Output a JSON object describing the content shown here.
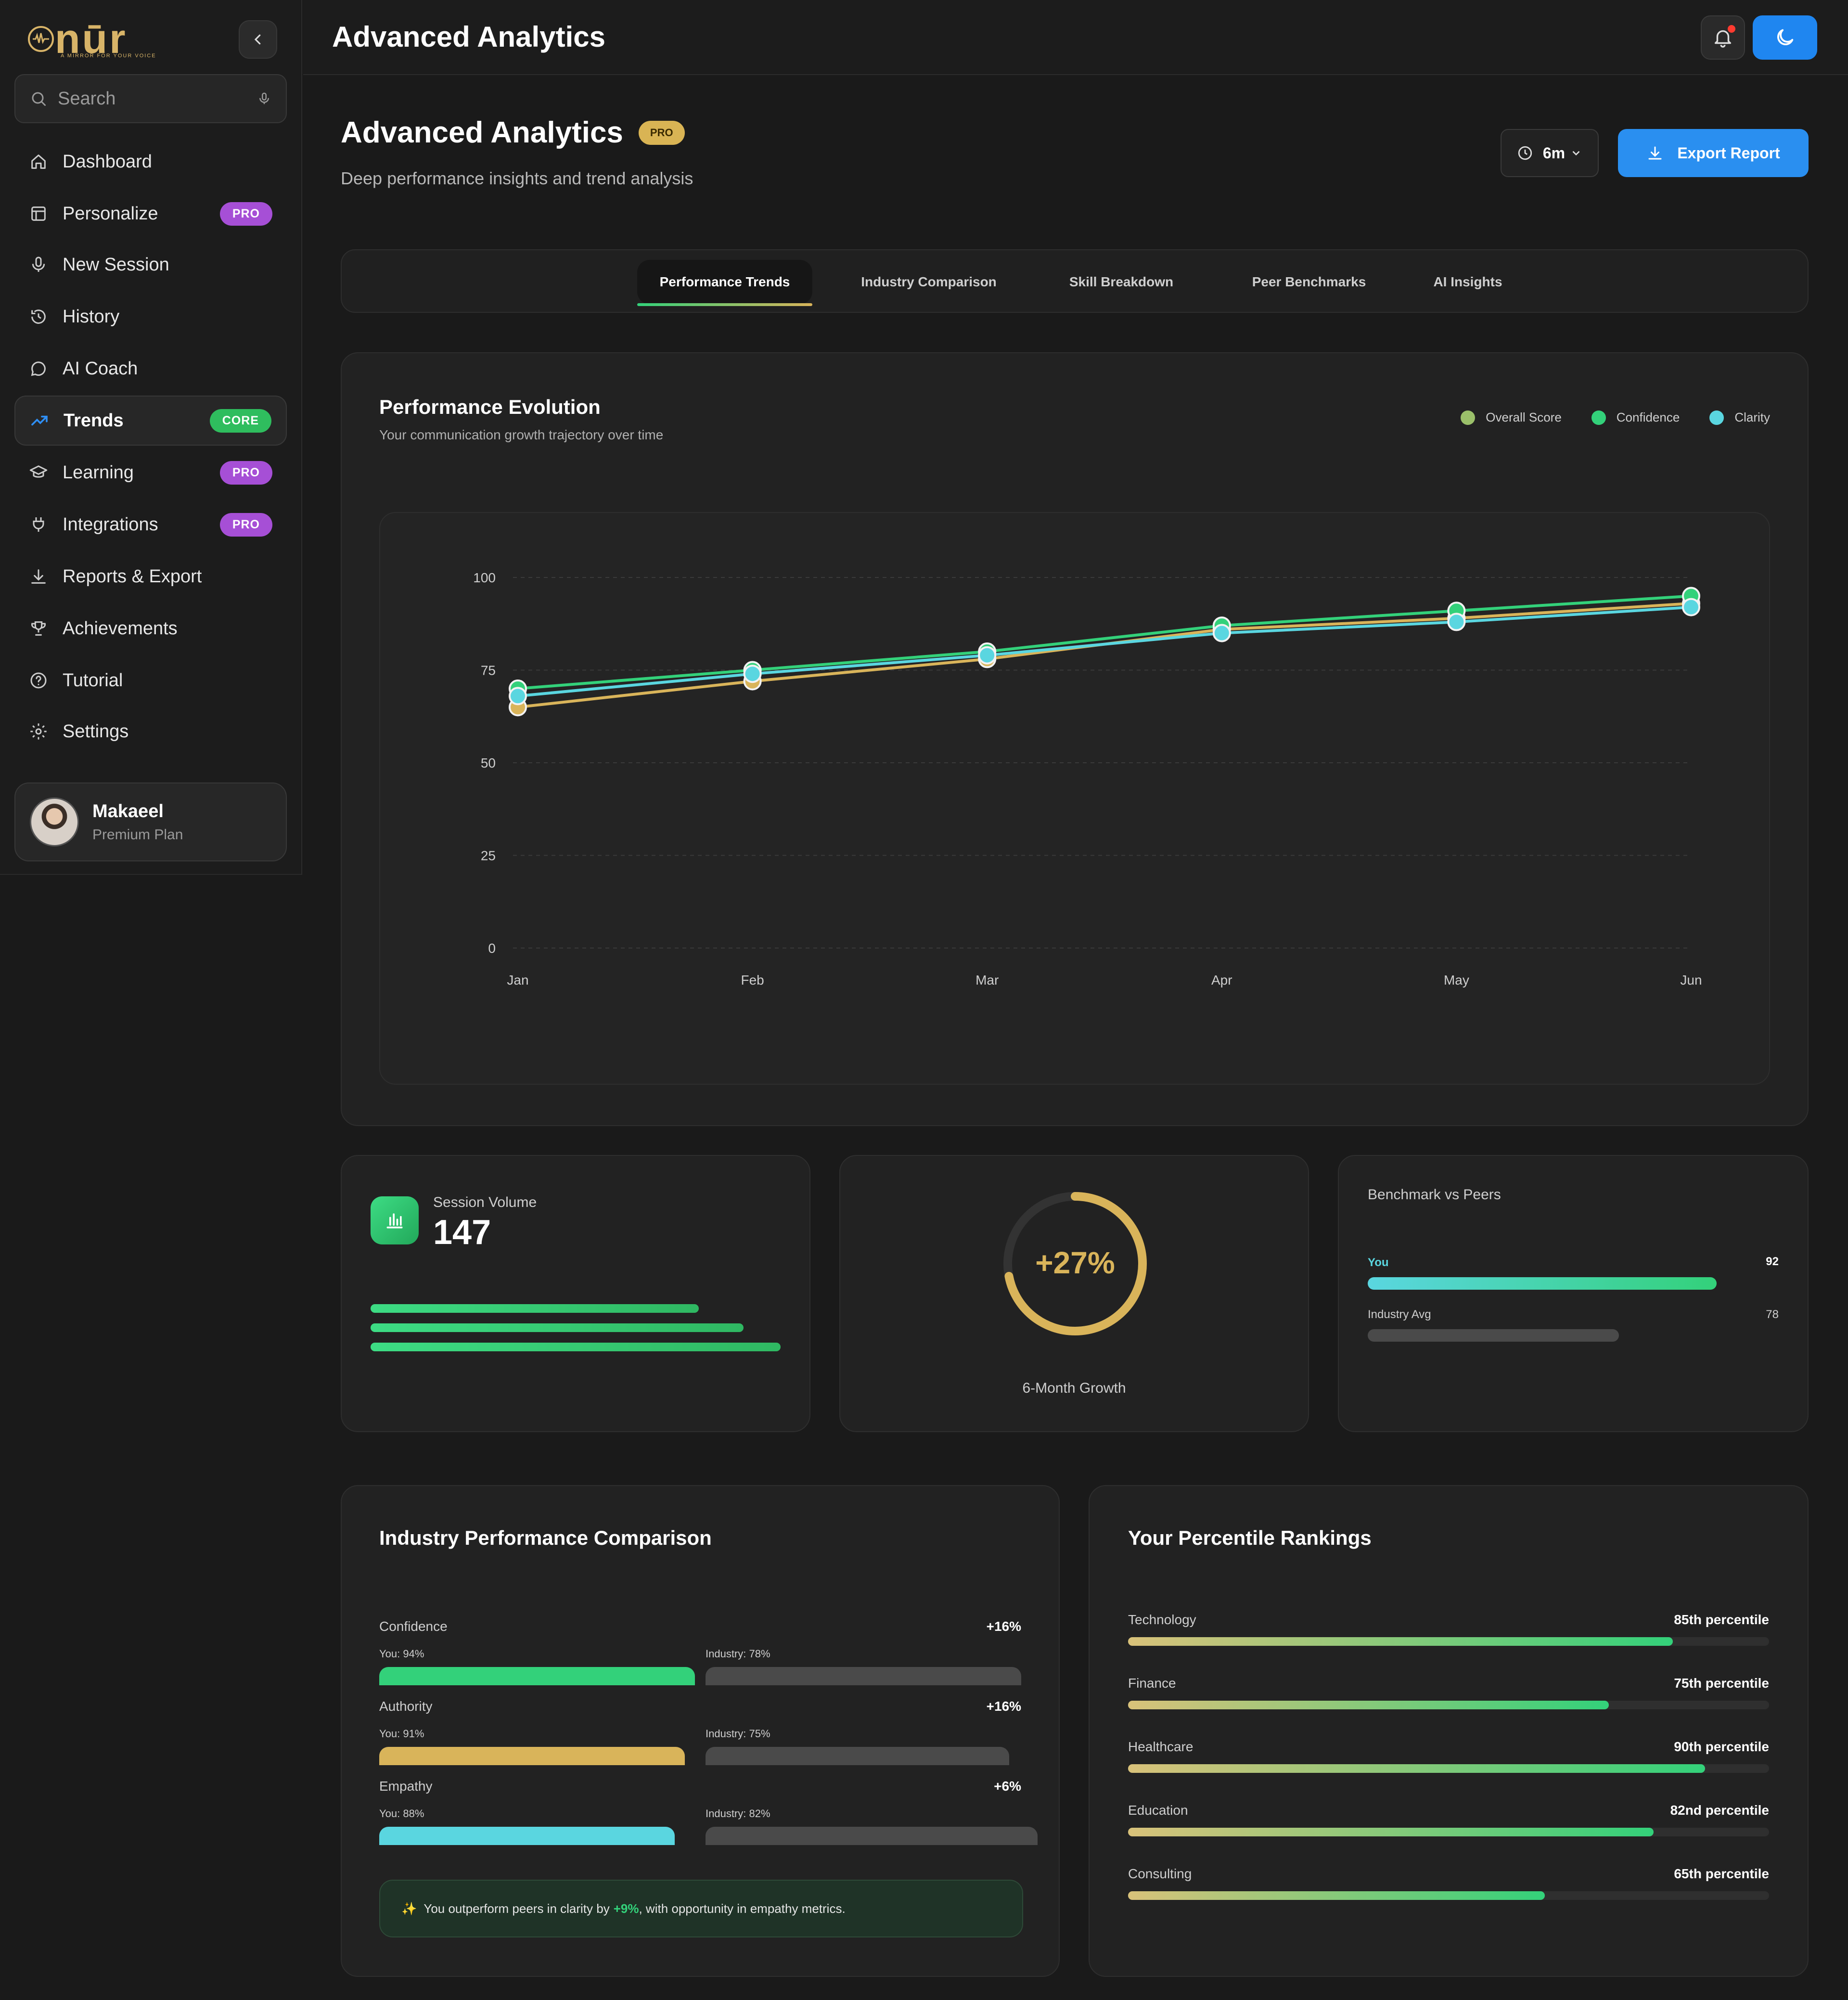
{
  "app": {
    "name": "nūr",
    "tagline": "A MIRROR FOR YOUR VOICE"
  },
  "sidebar": {
    "search_placeholder": "Search",
    "items": [
      {
        "label": "Dashboard",
        "icon": "home-icon"
      },
      {
        "label": "Personalize",
        "icon": "layout-icon",
        "badge": "PRO"
      },
      {
        "label": "New Session",
        "icon": "mic-icon"
      },
      {
        "label": "History",
        "icon": "history-icon"
      },
      {
        "label": "AI Coach",
        "icon": "chat-icon"
      },
      {
        "label": "Trends",
        "icon": "trending-up-icon",
        "badge": "CORE",
        "active": true
      },
      {
        "label": "Learning",
        "icon": "graduation-cap-icon",
        "badge": "PRO"
      },
      {
        "label": "Integrations",
        "icon": "plug-icon",
        "badge": "PRO"
      },
      {
        "label": "Reports & Export",
        "icon": "download-icon"
      },
      {
        "label": "Achievements",
        "icon": "trophy-icon"
      },
      {
        "label": "Tutorial",
        "icon": "help-circle-icon"
      },
      {
        "label": "Settings",
        "icon": "gear-icon"
      }
    ],
    "user": {
      "name": "Makaeel",
      "plan": "Premium Plan"
    }
  },
  "topbar": {
    "title": "Advanced Analytics"
  },
  "page": {
    "title": "Advanced Analytics",
    "badge": "PRO",
    "subtitle": "Deep performance insights and trend analysis",
    "range": "6m",
    "export_label": "Export Report"
  },
  "tabs": [
    "Performance Trends",
    "Industry Comparison",
    "Skill Breakdown",
    "Peer Benchmarks",
    "AI Insights"
  ],
  "evolution": {
    "title": "Performance Evolution",
    "subtitle": "Your communication growth trajectory over time"
  },
  "chart_data": {
    "type": "line",
    "title": "Performance Evolution",
    "subtitle": "Your communication growth trajectory over time",
    "categories": [
      "Jan",
      "Feb",
      "Mar",
      "Apr",
      "May",
      "Jun"
    ],
    "ylim": [
      0,
      100
    ],
    "yticks": [
      0,
      25,
      50,
      75,
      100
    ],
    "grid": true,
    "legend": "top-right",
    "series": [
      {
        "name": "Overall Score",
        "color": "#d9b45a",
        "values": [
          65,
          72,
          78,
          86,
          89,
          93
        ]
      },
      {
        "name": "Confidence",
        "color": "#33d17a",
        "values": [
          70,
          75,
          80,
          87,
          91,
          95
        ]
      },
      {
        "name": "Clarity",
        "color": "#5ad6e0",
        "values": [
          68,
          74,
          79,
          85,
          88,
          92
        ]
      }
    ]
  },
  "session_volume": {
    "label": "Session Volume",
    "value": "147",
    "bars": [
      0.8,
      0.91,
      1.0
    ]
  },
  "growth": {
    "value": "+27%",
    "label": "6-Month Growth",
    "fraction": 0.72
  },
  "benchmark": {
    "title": "Benchmark vs Peers",
    "you_label": "You",
    "you_value": 92,
    "avg_label": "Industry Avg",
    "avg_value": 78
  },
  "industry": {
    "title": "Industry Performance Comparison",
    "rows": [
      {
        "name": "Confidence",
        "delta": "+16%",
        "you": "You: 94%",
        "industry": "Industry: 78%",
        "you_val": 94,
        "ind_val": 78,
        "color": "#33d17a"
      },
      {
        "name": "Authority",
        "delta": "+16%",
        "you": "You: 91%",
        "industry": "Industry: 75%",
        "you_val": 91,
        "ind_val": 75,
        "color": "#d9b45a"
      },
      {
        "name": "Empathy",
        "delta": "+6%",
        "you": "You: 88%",
        "industry": "Industry: 82%",
        "you_val": 88,
        "ind_val": 82,
        "color": "#5ad6e0"
      }
    ],
    "tip_prefix": "You outperform peers in clarity by",
    "tip_highlight": "+9%",
    "tip_suffix": ", with opportunity in empathy metrics."
  },
  "percentiles": {
    "title": "Your Percentile Rankings",
    "rows": [
      {
        "name": "Technology",
        "label": "85th percentile",
        "value": 85
      },
      {
        "name": "Finance",
        "label": "75th percentile",
        "value": 75
      },
      {
        "name": "Healthcare",
        "label": "90th percentile",
        "value": 90
      },
      {
        "name": "Education",
        "label": "82nd percentile",
        "value": 82
      },
      {
        "name": "Consulting",
        "label": "65th percentile",
        "value": 65
      }
    ]
  }
}
